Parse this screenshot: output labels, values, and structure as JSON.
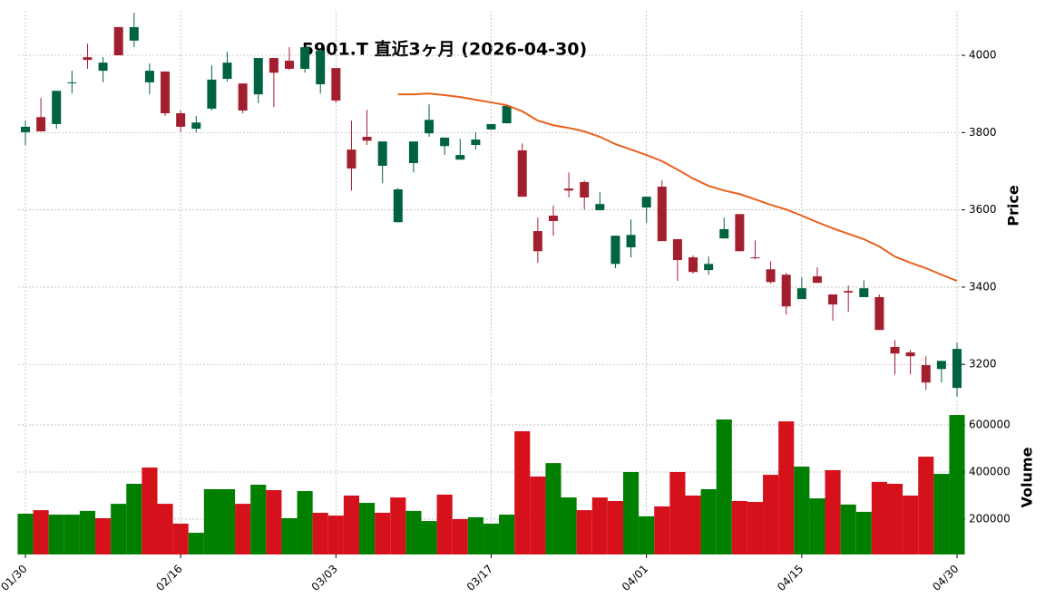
{
  "chart_data": {
    "type": "candlestick",
    "title": "5901.T  直近3ヶ月  (2026-04-30)",
    "categories": [
      "01/30",
      null,
      null,
      null,
      null,
      null,
      null,
      null,
      null,
      null,
      "02/16",
      null,
      null,
      null,
      null,
      null,
      null,
      null,
      null,
      null,
      "03/03",
      null,
      null,
      null,
      null,
      null,
      null,
      null,
      null,
      null,
      "03/17",
      null,
      null,
      null,
      null,
      null,
      null,
      null,
      null,
      null,
      "04/01",
      null,
      null,
      null,
      null,
      null,
      null,
      null,
      null,
      null,
      "04/15",
      null,
      null,
      null,
      null,
      null,
      null,
      null,
      null,
      null,
      "04/30"
    ],
    "open": [
      3801,
      3840,
      3822,
      3928,
      3995,
      3960,
      4073,
      4038,
      3930,
      3958,
      3850,
      3810,
      3862,
      3939,
      3927,
      3899,
      3993,
      3986,
      3965,
      3925,
      3967,
      3756,
      3789,
      3714,
      3568,
      3721,
      3798,
      3765,
      3730,
      3768,
      3808,
      3824,
      3754,
      3545,
      3585,
      3655,
      3672,
      3599,
      3460,
      3503,
      3606,
      3660,
      3524,
      3477,
      3444,
      3526,
      3589,
      3477,
      3446,
      3432,
      3369,
      3428,
      3381,
      3390,
      3374,
      3374,
      3245,
      3231,
      3198,
      3188,
      3139
    ],
    "high": [
      3831,
      3890,
      3908,
      3960,
      4030,
      3995,
      4073,
      4110,
      3979,
      3958,
      3857,
      3843,
      3974,
      4009,
      3927,
      3993,
      3993,
      4021,
      4021,
      4012,
      3967,
      3831,
      3859,
      3777,
      3657,
      3777,
      3873,
      3787,
      3784,
      3801,
      3822,
      3869,
      3772,
      3580,
      3611,
      3697,
      3676,
      3646,
      3533,
      3575,
      3634,
      3676,
      3524,
      3482,
      3479,
      3580,
      3589,
      3521,
      3467,
      3437,
      3425,
      3451,
      3381,
      3404,
      3418,
      3381,
      3263,
      3238,
      3221,
      3209,
      3256
    ],
    "low": [
      3768,
      3803,
      3810,
      3901,
      3965,
      3930,
      4000,
      4021,
      3899,
      3843,
      3801,
      3801,
      3857,
      3932,
      3850,
      3876,
      3866,
      3962,
      3955,
      3901,
      3878,
      3650,
      3768,
      3669,
      3568,
      3697,
      3789,
      3742,
      3730,
      3756,
      3808,
      3824,
      3634,
      3463,
      3533,
      3632,
      3601,
      3599,
      3449,
      3477,
      3566,
      3519,
      3416,
      3435,
      3432,
      3526,
      3493,
      3472,
      3409,
      3329,
      3369,
      3411,
      3313,
      3336,
      3374,
      3289,
      3174,
      3174,
      3134,
      3153,
      3116
    ],
    "close": [
      3815,
      3803,
      3908,
      3930,
      3988,
      3981,
      4000,
      4073,
      3960,
      3850,
      3815,
      3826,
      3937,
      3981,
      3857,
      3993,
      3955,
      3965,
      4021,
      4012,
      3883,
      3707,
      3779,
      3777,
      3653,
      3777,
      3833,
      3787,
      3742,
      3782,
      3822,
      3869,
      3634,
      3493,
      3571,
      3650,
      3632,
      3615,
      3533,
      3535,
      3634,
      3519,
      3470,
      3439,
      3460,
      3550,
      3493,
      3475,
      3413,
      3350,
      3397,
      3411,
      3355,
      3386,
      3397,
      3289,
      3228,
      3221,
      3153,
      3209,
      3240
    ],
    "up_color": "#006340",
    "down_color": "#a31f2f",
    "ma": {
      "color": "#e8601c",
      "values": [
        null,
        null,
        null,
        null,
        null,
        null,
        null,
        null,
        null,
        null,
        null,
        null,
        null,
        null,
        null,
        null,
        null,
        null,
        null,
        null,
        null,
        null,
        null,
        null,
        3899,
        3899,
        3901,
        3897,
        3892,
        3885,
        3878,
        3871,
        3855,
        3831,
        3819,
        3812,
        3803,
        3789,
        3770,
        3756,
        3742,
        3726,
        3704,
        3681,
        3662,
        3650,
        3641,
        3627,
        3613,
        3601,
        3585,
        3568,
        3552,
        3538,
        3524,
        3505,
        3479,
        3463,
        3449,
        3432,
        3416
      ]
    },
    "ylabel": "Price",
    "ylim": [
      3116,
      4115
    ],
    "yticks": [
      3200,
      3400,
      3600,
      3800,
      4000
    ],
    "grid": true,
    "volume": {
      "values": [
        223000,
        238000,
        219000,
        219000,
        235000,
        204000,
        265000,
        350000,
        419000,
        265000,
        181000,
        142000,
        327000,
        327000,
        265000,
        346000,
        323000,
        204000,
        319000,
        227000,
        215000,
        300000,
        269000,
        227000,
        292000,
        235000,
        192000,
        304000,
        200000,
        208000,
        181000,
        219000,
        573000,
        381000,
        438000,
        292000,
        238000,
        292000,
        277000,
        400000,
        212000,
        254000,
        400000,
        300000,
        327000,
        623000,
        277000,
        273000,
        388000,
        615000,
        423000,
        288000,
        408000,
        262000,
        231000,
        358000,
        350000,
        300000,
        465000,
        392000,
        642000
      ],
      "up_color": "#007f00",
      "down_color": "#d5121c",
      "ylabel": "Volume",
      "ylim": [
        50000,
        703800
      ],
      "yticks": [
        200000,
        400000,
        600000
      ]
    }
  }
}
